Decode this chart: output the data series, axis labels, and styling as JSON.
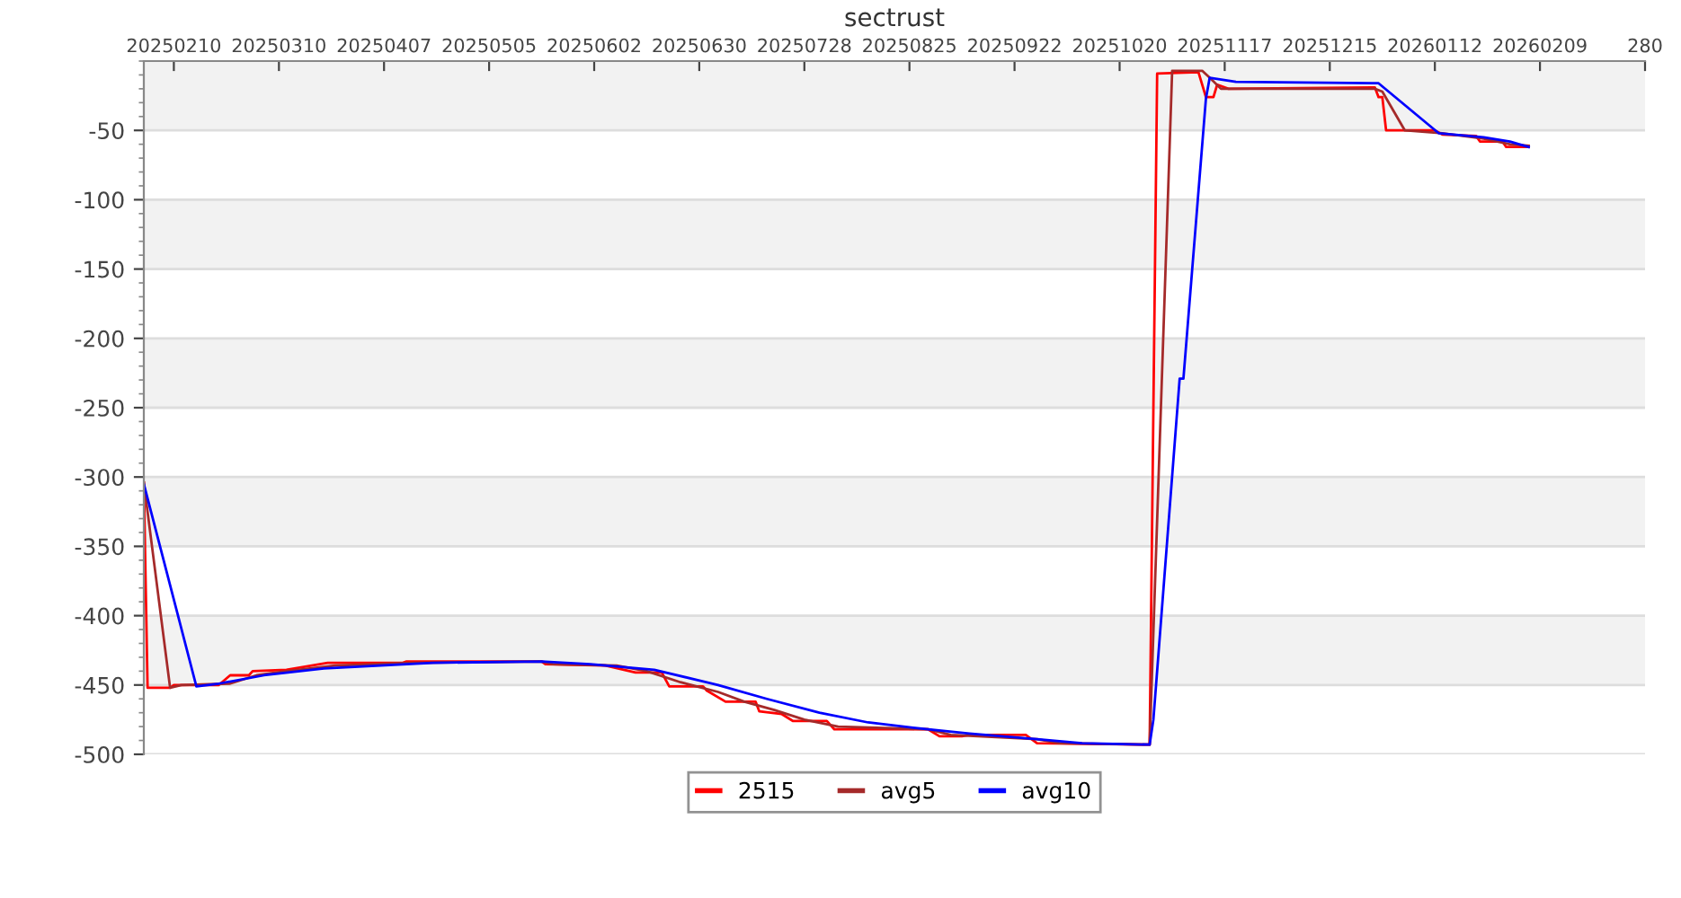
{
  "chart_data": {
    "type": "line",
    "title": "sectrust",
    "xlim": [
      "2025-02-02",
      "2026-03-09"
    ],
    "xticks": [
      {
        "value": "2025-02-10",
        "label": "20250210"
      },
      {
        "value": "2025-03-10",
        "label": "20250310"
      },
      {
        "value": "2025-04-07",
        "label": "20250407"
      },
      {
        "value": "2025-05-05",
        "label": "20250505"
      },
      {
        "value": "2025-06-02",
        "label": "20250602"
      },
      {
        "value": "2025-06-30",
        "label": "20250630"
      },
      {
        "value": "2025-07-28",
        "label": "20250728"
      },
      {
        "value": "2025-08-25",
        "label": "20250825"
      },
      {
        "value": "2025-09-22",
        "label": "20250922"
      },
      {
        "value": "2025-10-20",
        "label": "20251020"
      },
      {
        "value": "2025-11-17",
        "label": "20251117"
      },
      {
        "value": "2025-12-15",
        "label": "20251215"
      },
      {
        "value": "2026-01-12",
        "label": "20260112"
      },
      {
        "value": "2026-02-09",
        "label": "20260209"
      },
      {
        "value": "2026-03-09",
        "label": "280"
      }
    ],
    "ylim": [
      -500,
      0
    ],
    "yticks": [
      -500,
      -450,
      -400,
      -350,
      -300,
      -250,
      -200,
      -150,
      -100,
      -50
    ],
    "grid": "y",
    "legend": "bottom",
    "marker": "none",
    "line_style": "solid",
    "bands": [
      {
        "axis": "y",
        "from": -50,
        "to": 0,
        "color": "#f2f2f2"
      },
      {
        "axis": "y",
        "from": -150,
        "to": -100,
        "color": "#f2f2f2"
      },
      {
        "axis": "y",
        "from": -250,
        "to": -200,
        "color": "#f2f2f2"
      },
      {
        "axis": "y",
        "from": -350,
        "to": -300,
        "color": "#f2f2f2"
      },
      {
        "axis": "y",
        "from": -450,
        "to": -400,
        "color": "#f2f2f2"
      }
    ],
    "series": [
      {
        "name": "2515",
        "color": "#ff0000",
        "x": [
          "2025-02-02",
          "2025-02-03",
          "2025-02-09",
          "2025-02-10",
          "2025-02-22",
          "2025-02-25",
          "2025-03-02",
          "2025-03-03",
          "2025-03-12",
          "2025-03-23",
          "2025-04-12",
          "2025-04-13",
          "2025-05-19",
          "2025-05-20",
          "2025-06-05",
          "2025-06-13",
          "2025-06-20",
          "2025-06-22",
          "2025-07-01",
          "2025-07-02",
          "2025-07-07",
          "2025-07-15",
          "2025-07-16",
          "2025-07-22",
          "2025-07-25",
          "2025-08-03",
          "2025-08-05",
          "2025-08-30",
          "2025-09-02",
          "2025-09-08",
          "2025-09-10",
          "2025-09-25",
          "2025-09-28",
          "2025-10-28",
          "2025-10-30",
          "2025-11-10",
          "2025-11-12",
          "2025-11-14",
          "2025-11-15",
          "2025-11-18",
          "2025-12-27",
          "2025-12-28",
          "2025-12-29",
          "2025-12-30",
          "2026-01-12",
          "2026-01-14",
          "2026-01-23",
          "2026-01-24",
          "2026-01-30",
          "2026-01-31",
          "2026-02-06"
        ],
        "values": [
          -304,
          -452,
          -452,
          -450,
          -450,
          -443,
          -443,
          -440,
          -439,
          -434,
          -434,
          -433,
          -433,
          -435,
          -436,
          -441,
          -441,
          -451,
          -451,
          -454,
          -462,
          -462,
          -469,
          -471,
          -476,
          -476,
          -482,
          -482,
          -487,
          -487,
          -486,
          -486,
          -492,
          -493,
          -9,
          -8,
          -26,
          -26,
          -17,
          -20,
          -19,
          -26,
          -26,
          -50,
          -50,
          -53,
          -54,
          -58,
          -58,
          -62,
          -62
        ]
      },
      {
        "name": "avg5",
        "color": "#a52a2a",
        "x": [
          "2025-02-02",
          "2025-02-09",
          "2025-02-12",
          "2025-02-25",
          "2025-03-04",
          "2025-03-12",
          "2025-03-25",
          "2025-04-14",
          "2025-05-19",
          "2025-05-22",
          "2025-06-08",
          "2025-06-16",
          "2025-06-25",
          "2025-07-05",
          "2025-07-12",
          "2025-07-20",
          "2025-07-28",
          "2025-08-06",
          "2025-08-30",
          "2025-09-05",
          "2025-09-28",
          "2025-10-04",
          "2025-10-28",
          "2025-11-03",
          "2025-11-11",
          "2025-11-13",
          "2025-11-16",
          "2025-12-27",
          "2025-12-29",
          "2026-01-04",
          "2026-01-14",
          "2026-01-25",
          "2026-02-01",
          "2026-02-06"
        ],
        "values": [
          -304,
          -452,
          -450,
          -449,
          -443,
          -440,
          -436,
          -434,
          -433,
          -435,
          -436,
          -440,
          -448,
          -455,
          -462,
          -468,
          -475,
          -480,
          -482,
          -486,
          -489,
          -492,
          -493,
          -7,
          -7,
          -12,
          -20,
          -20,
          -22,
          -50,
          -52,
          -56,
          -60,
          -61
        ]
      },
      {
        "name": "avg10",
        "color": "#0000ff",
        "x": [
          "2025-02-02",
          "2025-02-16",
          "2025-02-22",
          "2025-03-06",
          "2025-03-22",
          "2025-04-20",
          "2025-05-19",
          "2025-06-01",
          "2025-06-18",
          "2025-07-05",
          "2025-07-18",
          "2025-08-01",
          "2025-08-14",
          "2025-08-30",
          "2025-09-10",
          "2025-09-28",
          "2025-10-10",
          "2025-10-28",
          "2025-10-29",
          "2025-11-05",
          "2025-11-06",
          "2025-11-12",
          "2025-11-13",
          "2025-11-20",
          "2025-12-28",
          "2026-01-13",
          "2026-01-25",
          "2026-02-01",
          "2026-02-06"
        ],
        "values": [
          -305,
          -451,
          -449,
          -443,
          -438,
          -434,
          -433,
          -435,
          -439,
          -450,
          -460,
          -470,
          -477,
          -482,
          -485,
          -489,
          -492,
          -493,
          -475,
          -229,
          -229,
          -27,
          -12,
          -15,
          -16,
          -52,
          -55,
          -58,
          -62
        ]
      }
    ]
  }
}
